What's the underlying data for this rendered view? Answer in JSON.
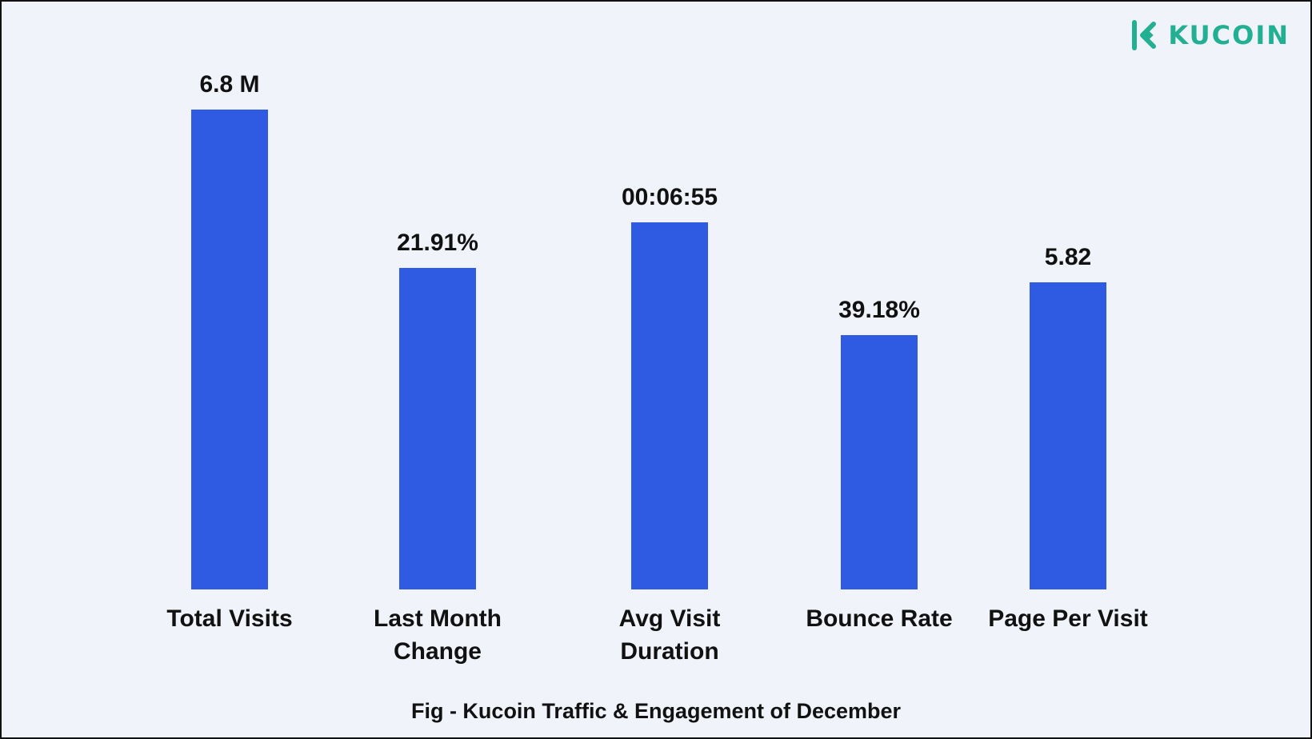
{
  "logo": {
    "text": "KUCOIN",
    "color": "#23af91",
    "icon": "kucoin-logo-icon"
  },
  "caption": "Fig - Kucoin Traffic & Engagement of December",
  "colors": {
    "bar": "#2f5be2",
    "background": "#f0f3fa",
    "text": "#111111"
  },
  "chart_data": {
    "type": "bar",
    "title": "",
    "xlabel": "",
    "ylabel": "",
    "grid": false,
    "legend": "none",
    "categories": [
      [
        "Total Visits"
      ],
      [
        "Last Month",
        "Change"
      ],
      [
        "Avg Visit",
        "Duration"
      ],
      [
        "Bounce Rate"
      ],
      [
        "Page Per Visit"
      ]
    ],
    "data_labels": [
      "6.8 M",
      "21.91%",
      "00:06:55",
      "39.18%",
      "5.82"
    ],
    "relative_heights": [
      1.0,
      0.67,
      0.765,
      0.53,
      0.64
    ]
  }
}
